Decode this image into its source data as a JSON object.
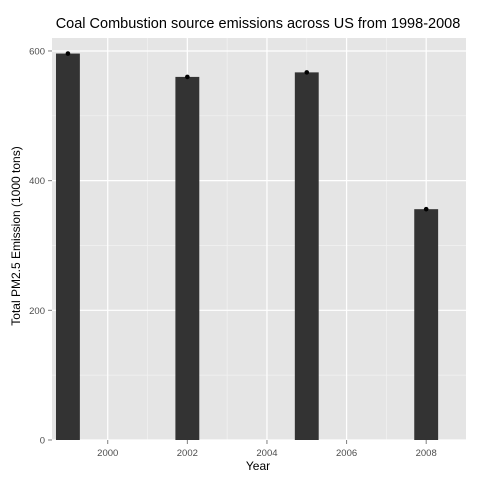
{
  "chart_data": {
    "type": "bar",
    "title": "Coal Combustion source emissions across US from 1998-2008",
    "xlabel": "Year",
    "ylabel": "Total PM2.5 Emission (1000 tons)",
    "x": [
      1999,
      2002,
      2005,
      2008
    ],
    "values": [
      596,
      560,
      567,
      356
    ],
    "xlim": [
      1998.6,
      2009.0
    ],
    "ylim": [
      0,
      620
    ],
    "xticks": [
      2000,
      2002,
      2004,
      2006,
      2008
    ],
    "yticks": [
      0,
      200,
      400,
      600
    ],
    "bar_width_years": 0.6,
    "grid": true,
    "point_markers": true,
    "colors": {
      "panel": "#e5e5e5",
      "grid_major": "#ffffff",
      "grid_minor": "#f2f2f2",
      "bar": "#333333",
      "marker": "#000000",
      "tick": "#4d4d4d"
    }
  }
}
